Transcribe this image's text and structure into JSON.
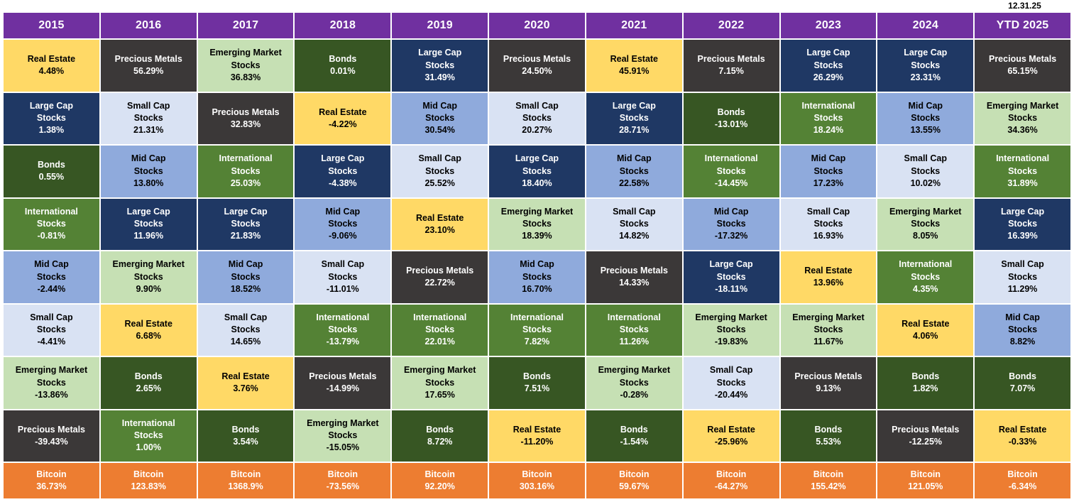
{
  "page": {
    "as_of_date": "12.31.25"
  },
  "colors": {
    "header_bg": "#7030A0",
    "header_text": "#FFFFFF",
    "grid_gap": "#FFFFFF",
    "page_bg": "#FFFFFF"
  },
  "chart_data": {
    "type": "table",
    "description": "Periodic-table style quilt of annual asset class returns ranked best to worst per year, with Bitcoin shown as a separate bottom row",
    "columns": [
      "2015",
      "2016",
      "2017",
      "2018",
      "2019",
      "2020",
      "2021",
      "2022",
      "2023",
      "2024",
      "YTD 2025"
    ],
    "assets": {
      "real_estate": {
        "label": "Real Estate",
        "bg": "#FFD966",
        "fg": "#000000"
      },
      "precious_metals": {
        "label": "Precious Metals",
        "bg": "#3B3838",
        "fg": "#FFFFFF"
      },
      "emerging_market": {
        "label": "Emerging Market\nStocks",
        "bg": "#C6E0B4",
        "fg": "#000000"
      },
      "bonds": {
        "label": "Bonds",
        "bg": "#375623",
        "fg": "#FFFFFF"
      },
      "large_cap": {
        "label": "Large Cap\nStocks",
        "bg": "#1F3864",
        "fg": "#FFFFFF"
      },
      "mid_cap": {
        "label": "Mid Cap\nStocks",
        "bg": "#8FAADC",
        "fg": "#000000"
      },
      "small_cap": {
        "label": "Small Cap\nStocks",
        "bg": "#D9E2F3",
        "fg": "#000000"
      },
      "international": {
        "label": "International\nStocks",
        "bg": "#548235",
        "fg": "#FFFFFF"
      },
      "bitcoin": {
        "label": "Bitcoin",
        "bg": "#ED7D31",
        "fg": "#FFFFFF"
      }
    },
    "grid": [
      {
        "year": "2015",
        "cells": [
          [
            "real_estate",
            "4.48%"
          ],
          [
            "large_cap",
            "1.38%"
          ],
          [
            "bonds",
            "0.55%"
          ],
          [
            "international",
            "-0.81%"
          ],
          [
            "mid_cap",
            "-2.44%"
          ],
          [
            "small_cap",
            "-4.41%"
          ],
          [
            "emerging_market",
            "-13.86%"
          ],
          [
            "precious_metals",
            "-39.43%"
          ],
          [
            "bitcoin",
            "36.73%"
          ]
        ]
      },
      {
        "year": "2016",
        "cells": [
          [
            "precious_metals",
            "56.29%"
          ],
          [
            "small_cap",
            "21.31%"
          ],
          [
            "mid_cap",
            "13.80%"
          ],
          [
            "large_cap",
            "11.96%"
          ],
          [
            "emerging_market",
            "9.90%"
          ],
          [
            "real_estate",
            "6.68%"
          ],
          [
            "bonds",
            "2.65%"
          ],
          [
            "international",
            "1.00%"
          ],
          [
            "bitcoin",
            "123.83%"
          ]
        ]
      },
      {
        "year": "2017",
        "cells": [
          [
            "emerging_market",
            "36.83%"
          ],
          [
            "precious_metals",
            "32.83%"
          ],
          [
            "international",
            "25.03%"
          ],
          [
            "large_cap",
            "21.83%"
          ],
          [
            "mid_cap",
            "18.52%"
          ],
          [
            "small_cap",
            "14.65%"
          ],
          [
            "real_estate",
            "3.76%"
          ],
          [
            "bonds",
            "3.54%"
          ],
          [
            "bitcoin",
            "1368.9%"
          ]
        ]
      },
      {
        "year": "2018",
        "cells": [
          [
            "bonds",
            "0.01%"
          ],
          [
            "real_estate",
            "-4.22%"
          ],
          [
            "large_cap",
            "-4.38%"
          ],
          [
            "mid_cap",
            "-9.06%"
          ],
          [
            "small_cap",
            "-11.01%"
          ],
          [
            "international",
            "-13.79%"
          ],
          [
            "precious_metals",
            "-14.99%"
          ],
          [
            "emerging_market",
            "-15.05%"
          ],
          [
            "bitcoin",
            "-73.56%"
          ]
        ]
      },
      {
        "year": "2019",
        "cells": [
          [
            "large_cap",
            "31.49%"
          ],
          [
            "mid_cap",
            "30.54%"
          ],
          [
            "small_cap",
            "25.52%"
          ],
          [
            "real_estate",
            "23.10%"
          ],
          [
            "precious_metals",
            "22.72%"
          ],
          [
            "international",
            "22.01%"
          ],
          [
            "emerging_market",
            "17.65%"
          ],
          [
            "bonds",
            "8.72%"
          ],
          [
            "bitcoin",
            "92.20%"
          ]
        ]
      },
      {
        "year": "2020",
        "cells": [
          [
            "precious_metals",
            "24.50%"
          ],
          [
            "small_cap",
            "20.27%"
          ],
          [
            "large_cap",
            "18.40%"
          ],
          [
            "emerging_market",
            "18.39%"
          ],
          [
            "mid_cap",
            "16.70%"
          ],
          [
            "international",
            "7.82%"
          ],
          [
            "bonds",
            "7.51%"
          ],
          [
            "real_estate",
            "-11.20%"
          ],
          [
            "bitcoin",
            "303.16%"
          ]
        ]
      },
      {
        "year": "2021",
        "cells": [
          [
            "real_estate",
            "45.91%"
          ],
          [
            "large_cap",
            "28.71%"
          ],
          [
            "mid_cap",
            "22.58%"
          ],
          [
            "small_cap",
            "14.82%"
          ],
          [
            "precious_metals",
            "14.33%"
          ],
          [
            "international",
            "11.26%"
          ],
          [
            "emerging_market",
            "-0.28%"
          ],
          [
            "bonds",
            "-1.54%"
          ],
          [
            "bitcoin",
            "59.67%"
          ]
        ]
      },
      {
        "year": "2022",
        "cells": [
          [
            "precious_metals",
            "7.15%"
          ],
          [
            "bonds",
            "-13.01%"
          ],
          [
            "international",
            "-14.45%"
          ],
          [
            "mid_cap",
            "-17.32%"
          ],
          [
            "large_cap",
            "-18.11%"
          ],
          [
            "emerging_market",
            "-19.83%"
          ],
          [
            "small_cap",
            "-20.44%"
          ],
          [
            "real_estate",
            "-25.96%"
          ],
          [
            "bitcoin",
            "-64.27%"
          ]
        ]
      },
      {
        "year": "2023",
        "cells": [
          [
            "large_cap",
            "26.29%"
          ],
          [
            "international",
            "18.24%"
          ],
          [
            "mid_cap",
            "17.23%"
          ],
          [
            "small_cap",
            "16.93%"
          ],
          [
            "real_estate",
            "13.96%"
          ],
          [
            "emerging_market",
            "11.67%"
          ],
          [
            "precious_metals",
            "9.13%"
          ],
          [
            "bonds",
            "5.53%"
          ],
          [
            "bitcoin",
            "155.42%"
          ]
        ]
      },
      {
        "year": "2024",
        "cells": [
          [
            "large_cap",
            "23.31%"
          ],
          [
            "mid_cap",
            "13.55%"
          ],
          [
            "small_cap",
            "10.02%"
          ],
          [
            "emerging_market",
            "8.05%"
          ],
          [
            "international",
            "4.35%"
          ],
          [
            "real_estate",
            "4.06%"
          ],
          [
            "bonds",
            "1.82%"
          ],
          [
            "precious_metals",
            "-12.25%"
          ],
          [
            "bitcoin",
            "121.05%"
          ]
        ]
      },
      {
        "year": "YTD 2025",
        "cells": [
          [
            "precious_metals",
            "65.15%"
          ],
          [
            "emerging_market",
            "34.36%"
          ],
          [
            "international",
            "31.89%"
          ],
          [
            "large_cap",
            "16.39%"
          ],
          [
            "small_cap",
            "11.29%"
          ],
          [
            "mid_cap",
            "8.82%"
          ],
          [
            "bonds",
            "7.07%"
          ],
          [
            "real_estate",
            "-0.33%"
          ],
          [
            "bitcoin",
            "-6.34%"
          ]
        ]
      }
    ]
  }
}
